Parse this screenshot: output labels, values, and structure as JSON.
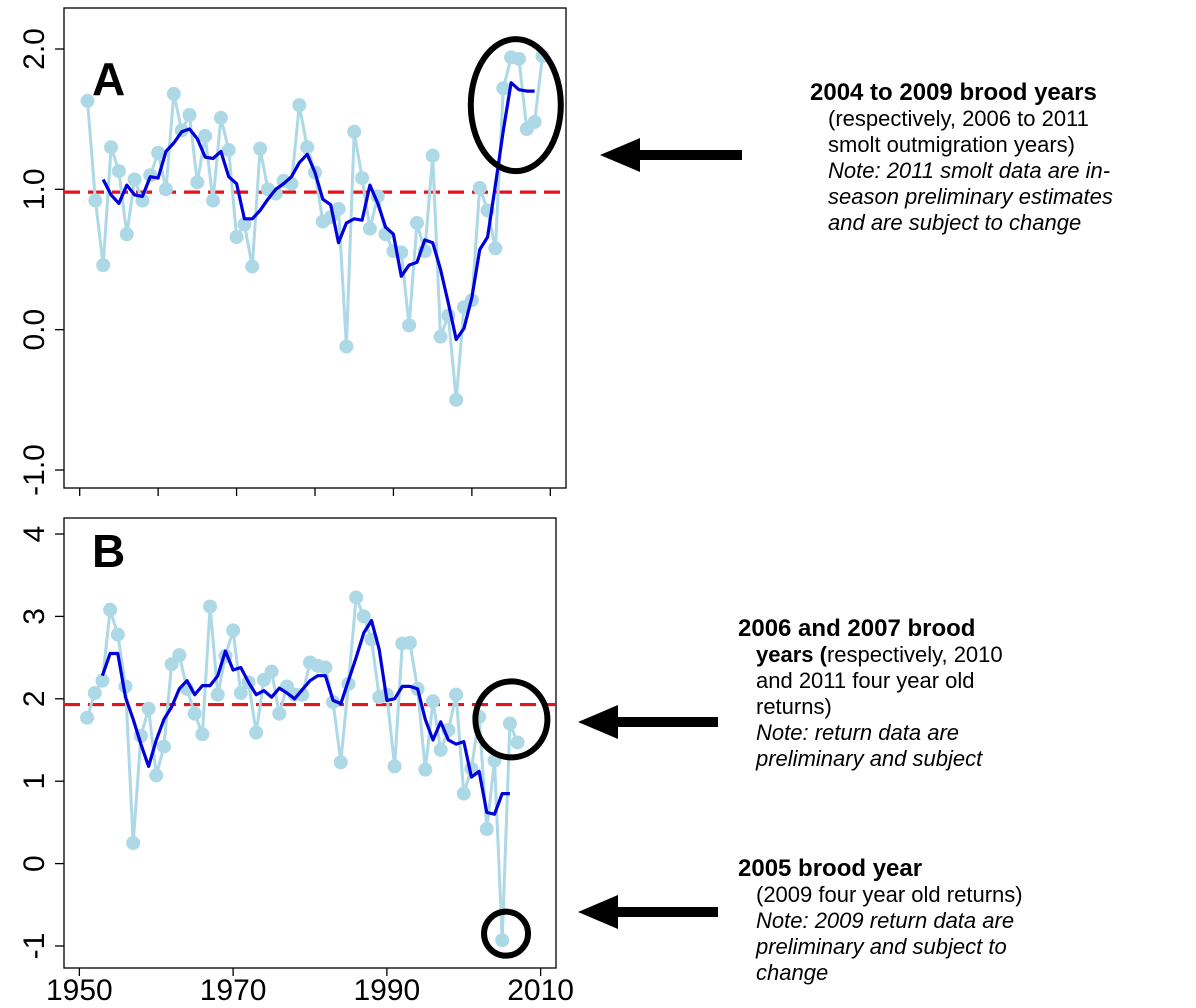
{
  "chart_data": [
    {
      "type": "line",
      "panel_label": "A",
      "xlim": [
        1948,
        2012
      ],
      "ylim": [
        -1.1,
        2.1
      ],
      "yticks": [
        -1.0,
        0.0,
        1.0,
        2.0
      ],
      "ytick_labels": [
        "-1.0",
        "0.0",
        "1.0",
        "2.0"
      ],
      "reference_line": 0.98,
      "series": [
        {
          "style": "points-and-line",
          "color": "#add8e6",
          "x": [
            1951,
            1952,
            1953,
            1954,
            1955,
            1956,
            1957,
            1958,
            1959,
            1960,
            1961,
            1962,
            1963,
            1964,
            1965,
            1966,
            1967,
            1968,
            1969,
            1970,
            1971,
            1972,
            1973,
            1974,
            1975,
            1976,
            1977,
            1978,
            1979,
            1980,
            1981,
            1982,
            1983,
            1984,
            1985,
            1986,
            1987,
            1988,
            1989,
            1990,
            1991,
            1992,
            1993,
            1994,
            1995,
            1996,
            1997,
            1998,
            1999,
            2000,
            2001,
            2002,
            2003,
            2004,
            2005,
            2006,
            2007,
            2008,
            2009
          ],
          "values": [
            1.63,
            0.92,
            0.46,
            1.3,
            1.13,
            0.68,
            1.07,
            0.92,
            1.1,
            1.26,
            1.0,
            1.68,
            1.42,
            1.53,
            1.05,
            1.38,
            0.92,
            1.51,
            1.28,
            0.66,
            0.75,
            0.45,
            1.29,
            1.0,
            0.97,
            1.06,
            1.04,
            1.6,
            1.3,
            1.12,
            0.77,
            0.8,
            0.86,
            -0.12,
            1.41,
            1.08,
            0.72,
            0.95,
            0.68,
            0.56,
            0.55,
            0.03,
            0.76,
            0.56,
            1.24,
            -0.05,
            0.1,
            -0.5,
            0.16,
            0.21,
            1.01,
            0.85,
            0.58,
            1.72,
            1.94,
            1.93,
            1.43,
            1.48,
            1.95
          ]
        },
        {
          "style": "line",
          "color": "#0000dd",
          "x": [
            1953,
            1954,
            1955,
            1956,
            1957,
            1958,
            1959,
            1960,
            1961,
            1962,
            1963,
            1964,
            1965,
            1966,
            1967,
            1968,
            1969,
            1970,
            1971,
            1972,
            1973,
            1974,
            1975,
            1976,
            1977,
            1978,
            1979,
            1980,
            1981,
            1982,
            1983,
            1984,
            1985,
            1986,
            1987,
            1988,
            1989,
            1990,
            1991,
            1992,
            1993,
            1994,
            1995,
            1996,
            1997,
            1998,
            1999,
            2000,
            2001,
            2002,
            2003,
            2004,
            2005,
            2006,
            2007,
            2008
          ],
          "values": [
            1.07,
            0.96,
            0.9,
            1.03,
            0.96,
            0.95,
            1.09,
            1.08,
            1.27,
            1.33,
            1.41,
            1.43,
            1.36,
            1.23,
            1.22,
            1.27,
            1.09,
            1.04,
            0.79,
            0.79,
            0.85,
            0.93,
            1.0,
            1.04,
            1.09,
            1.19,
            1.25,
            1.12,
            0.93,
            0.89,
            0.62,
            0.76,
            0.79,
            0.78,
            1.03,
            0.9,
            0.73,
            0.68,
            0.38,
            0.46,
            0.48,
            0.64,
            0.62,
            0.43,
            0.19,
            -0.07,
            0.01,
            0.23,
            0.57,
            0.66,
            1.03,
            1.42,
            1.76,
            1.71,
            1.7,
            1.7
          ]
        }
      ]
    },
    {
      "type": "line",
      "panel_label": "B",
      "xlim": [
        1948,
        2012
      ],
      "ylim": [
        -1.2,
        4.2
      ],
      "xticks": [
        1950,
        1970,
        1990,
        2010
      ],
      "xtick_labels": [
        "1950",
        "1970",
        "1990",
        "2010"
      ],
      "yticks": [
        -1,
        0,
        1,
        2,
        3,
        4
      ],
      "ytick_labels": [
        "-1",
        "0",
        "1",
        "2",
        "3",
        "4"
      ],
      "reference_line": 1.93,
      "series": [
        {
          "style": "points-and-line",
          "color": "#add8e6",
          "x": [
            1951,
            1952,
            1953,
            1954,
            1955,
            1956,
            1957,
            1958,
            1959,
            1960,
            1961,
            1962,
            1963,
            1964,
            1965,
            1966,
            1967,
            1968,
            1969,
            1970,
            1971,
            1972,
            1973,
            1974,
            1975,
            1976,
            1977,
            1978,
            1979,
            1980,
            1981,
            1982,
            1983,
            1984,
            1985,
            1986,
            1987,
            1988,
            1989,
            1990,
            1991,
            1992,
            1993,
            1994,
            1995,
            1996,
            1997,
            1998,
            1999,
            2000,
            2001,
            2002,
            2003,
            2004,
            2005,
            2006,
            2007
          ],
          "values": [
            1.77,
            2.07,
            2.22,
            3.08,
            2.78,
            2.15,
            0.25,
            1.55,
            1.88,
            1.07,
            1.42,
            2.42,
            2.53,
            2.12,
            1.82,
            1.57,
            3.12,
            2.05,
            2.52,
            2.83,
            2.07,
            2.2,
            1.59,
            2.23,
            2.33,
            1.82,
            2.15,
            2.05,
            2.05,
            2.44,
            2.4,
            2.38,
            1.96,
            1.23,
            2.18,
            3.23,
            3.0,
            2.72,
            2.02,
            2.05,
            1.18,
            2.67,
            2.68,
            2.12,
            1.14,
            1.97,
            1.38,
            1.62,
            2.05,
            0.85,
            1.15,
            1.78,
            0.42,
            1.25,
            -0.93,
            1.7,
            1.47
          ]
        },
        {
          "style": "line",
          "color": "#0000dd",
          "x": [
            1953,
            1954,
            1955,
            1956,
            1957,
            1958,
            1959,
            1960,
            1961,
            1962,
            1963,
            1964,
            1965,
            1966,
            1967,
            1968,
            1969,
            1970,
            1971,
            1972,
            1973,
            1974,
            1975,
            1976,
            1977,
            1978,
            1979,
            1980,
            1981,
            1982,
            1983,
            1984,
            1985,
            1986,
            1987,
            1988,
            1989,
            1990,
            1991,
            1992,
            1993,
            1994,
            1995,
            1996,
            1997,
            1998,
            1999,
            2000,
            2001,
            2002,
            2003,
            2004,
            2005,
            2006
          ],
          "values": [
            2.28,
            2.55,
            2.55,
            2.02,
            1.75,
            1.45,
            1.18,
            1.5,
            1.75,
            1.9,
            2.12,
            2.22,
            2.05,
            2.16,
            2.16,
            2.28,
            2.58,
            2.35,
            2.38,
            2.2,
            2.05,
            2.1,
            2.02,
            2.13,
            2.07,
            2.0,
            2.11,
            2.22,
            2.28,
            2.28,
            1.98,
            1.94,
            2.22,
            2.5,
            2.8,
            2.95,
            2.6,
            1.98,
            2.0,
            2.15,
            2.15,
            2.12,
            1.75,
            1.5,
            1.72,
            1.5,
            1.45,
            1.48,
            1.05,
            1.12,
            0.62,
            0.6,
            0.85,
            0.85
          ]
        }
      ]
    }
  ],
  "annotations": {
    "a": {
      "head": "2004 to 2009 brood years",
      "l1": "(respectively, 2006 to 2011",
      "l2": "smolt outmigration years)",
      "l3": "Note: 2011 smolt data are in-",
      "l4": "season preliminary estimates",
      "l5": "and are subject to change"
    },
    "b1": {
      "head": "2006 and 2007 brood",
      "l1_bold": "years (",
      "l1_rest": "respectively, 2010",
      "l2": "and 2011 four year old",
      "l3": "returns)",
      "l4": "Note: return data are",
      "l5": "preliminary and subject"
    },
    "b2": {
      "head": "2005 brood year",
      "l1": "(2009 four year old returns)",
      "l2": "Note: 2009 return data are",
      "l3": "preliminary and subject to",
      "l4": "change"
    }
  }
}
